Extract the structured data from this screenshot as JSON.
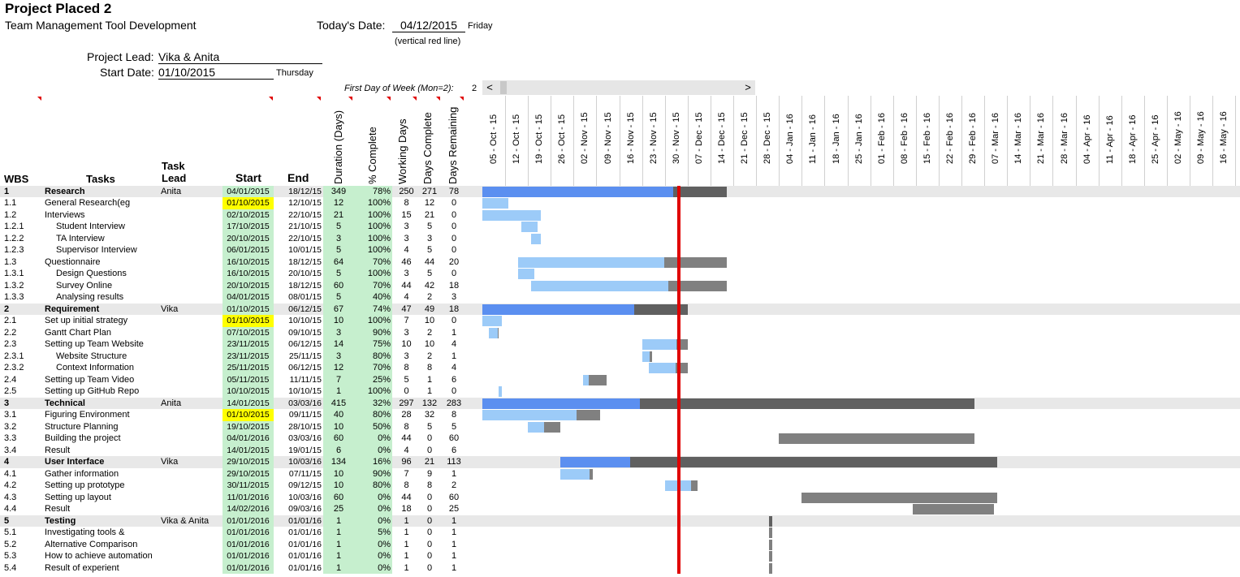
{
  "header": {
    "title": "Project Placed 2",
    "subtitle": "Team Management Tool Development",
    "today_label": "Today's Date:",
    "today_value": "04/12/2015",
    "today_day": "Friday",
    "today_note": "(vertical red line)",
    "lead_label": "Project Lead:",
    "lead_value": "Vika & Anita",
    "start_label": "Start Date:",
    "start_value": "01/10/2015",
    "start_day": "Thursday",
    "first_day_label": "First Day of Week (Mon=2):",
    "first_day_value": "2"
  },
  "columns": {
    "wbs": "WBS",
    "tasks": "Tasks",
    "lead_1": "Task",
    "lead_2": "Lead",
    "start": "Start",
    "end": "End",
    "duration": "Duration (Days)",
    "pct": "% Complete",
    "working": "Working Days",
    "done": "Days Complete",
    "remaining": "Days Remaining"
  },
  "scroll": {
    "left": "<",
    "right": ">"
  },
  "weeks": [
    "05 - Oct - 15",
    "12 - Oct - 15",
    "19 - Oct - 15",
    "26 - Oct - 15",
    "02 - Nov - 15",
    "09 - Nov - 15",
    "16 - Nov - 15",
    "23 - Nov - 15",
    "30 - Nov - 15",
    "07 - Dec - 15",
    "14 - Dec - 15",
    "21 - Dec - 15",
    "28 - Dec - 15",
    "04 - Jan - 16",
    "11 - Jan - 16",
    "18 - Jan - 16",
    "25 - Jan - 16",
    "01 - Feb - 16",
    "08 - Feb - 16",
    "15 - Feb - 16",
    "22 - Feb - 16",
    "29 - Feb - 16",
    "07 - Mar - 16",
    "14 - Mar - 16",
    "21 - Mar - 16",
    "28 - Mar - 16",
    "04 - Apr - 16",
    "11 - Apr - 16",
    "18 - Apr - 16",
    "25 - Apr - 16",
    "02 - May - 16",
    "09 - May - 16",
    "16 - May - 16"
  ],
  "colors": {
    "phase_done": "#5b8ff0",
    "phase_todo": "#606060",
    "task_done": "#9ccbf8",
    "task_todo": "#808080",
    "today": "#e00000"
  },
  "tasks": [
    {
      "wbs": "1",
      "task": "Research",
      "lead": "Anita",
      "start": "04/01/2015",
      "end": "18/12/15",
      "dur": "349",
      "pct": "78%",
      "wd": "250",
      "dc": "271",
      "dr": "78",
      "phase": true
    },
    {
      "wbs": "1.1",
      "task": "General Research(eg",
      "lead": "",
      "start": "01/10/2015",
      "end": "12/10/15",
      "dur": "12",
      "pct": "100%",
      "wd": "8",
      "dc": "12",
      "dr": "0",
      "hl": true
    },
    {
      "wbs": "1.2",
      "task": "Interviews",
      "lead": "",
      "start": "02/10/2015",
      "end": "22/10/15",
      "dur": "21",
      "pct": "100%",
      "wd": "15",
      "dc": "21",
      "dr": "0"
    },
    {
      "wbs": "1.2.1",
      "task": "Student Interview",
      "lead": "",
      "start": "17/10/2015",
      "end": "21/10/15",
      "dur": "5",
      "pct": "100%",
      "wd": "3",
      "dc": "5",
      "dr": "0",
      "sub": true
    },
    {
      "wbs": "1.2.2",
      "task": "TA Interview",
      "lead": "",
      "start": "20/10/2015",
      "end": "22/10/15",
      "dur": "3",
      "pct": "100%",
      "wd": "3",
      "dc": "3",
      "dr": "0",
      "sub": true
    },
    {
      "wbs": "1.2.3",
      "task": "Supervisor Interview",
      "lead": "",
      "start": "06/01/2015",
      "end": "10/01/15",
      "dur": "5",
      "pct": "100%",
      "wd": "4",
      "dc": "5",
      "dr": "0",
      "sub": true
    },
    {
      "wbs": "1.3",
      "task": "Questionnaire",
      "lead": "",
      "start": "16/10/2015",
      "end": "18/12/15",
      "dur": "64",
      "pct": "70%",
      "wd": "46",
      "dc": "44",
      "dr": "20"
    },
    {
      "wbs": "1.3.1",
      "task": "Design Questions",
      "lead": "",
      "start": "16/10/2015",
      "end": "20/10/15",
      "dur": "5",
      "pct": "100%",
      "wd": "3",
      "dc": "5",
      "dr": "0",
      "sub": true
    },
    {
      "wbs": "1.3.2",
      "task": "Survey Online",
      "lead": "",
      "start": "20/10/2015",
      "end": "18/12/15",
      "dur": "60",
      "pct": "70%",
      "wd": "44",
      "dc": "42",
      "dr": "18",
      "sub": true
    },
    {
      "wbs": "1.3.3",
      "task": "Analysing results",
      "lead": "",
      "start": "04/01/2015",
      "end": "08/01/15",
      "dur": "5",
      "pct": "40%",
      "wd": "4",
      "dc": "2",
      "dr": "3",
      "sub": true
    },
    {
      "wbs": "2",
      "task": "Requirement",
      "lead": "Vika",
      "start": "01/10/2015",
      "end": "06/12/15",
      "dur": "67",
      "pct": "74%",
      "wd": "47",
      "dc": "49",
      "dr": "18",
      "phase": true
    },
    {
      "wbs": "2.1",
      "task": "Set up initial strategy",
      "lead": "",
      "start": "01/10/2015",
      "end": "10/10/15",
      "dur": "10",
      "pct": "100%",
      "wd": "7",
      "dc": "10",
      "dr": "0",
      "hl": true
    },
    {
      "wbs": "2.2",
      "task": "Gantt Chart Plan",
      "lead": "",
      "start": "07/10/2015",
      "end": "09/10/15",
      "dur": "3",
      "pct": "90%",
      "wd": "3",
      "dc": "2",
      "dr": "1"
    },
    {
      "wbs": "2.3",
      "task": "Setting up Team Website",
      "lead": "",
      "start": "23/11/2015",
      "end": "06/12/15",
      "dur": "14",
      "pct": "75%",
      "wd": "10",
      "dc": "10",
      "dr": "4"
    },
    {
      "wbs": "2.3.1",
      "task": "Website Structure",
      "lead": "",
      "start": "23/11/2015",
      "end": "25/11/15",
      "dur": "3",
      "pct": "80%",
      "wd": "3",
      "dc": "2",
      "dr": "1",
      "sub": true
    },
    {
      "wbs": "2.3.2",
      "task": "Context Information",
      "lead": "",
      "start": "25/11/2015",
      "end": "06/12/15",
      "dur": "12",
      "pct": "70%",
      "wd": "8",
      "dc": "8",
      "dr": "4",
      "sub": true
    },
    {
      "wbs": "2.4",
      "task": "Setting up Team Video",
      "lead": "",
      "start": "05/11/2015",
      "end": "11/11/15",
      "dur": "7",
      "pct": "25%",
      "wd": "5",
      "dc": "1",
      "dr": "6"
    },
    {
      "wbs": "2.5",
      "task": "Setting up GitHub Repo",
      "lead": "",
      "start": "10/10/2015",
      "end": "10/10/15",
      "dur": "1",
      "pct": "100%",
      "wd": "0",
      "dc": "1",
      "dr": "0"
    },
    {
      "wbs": "3",
      "task": "Technical",
      "lead": "Anita",
      "start": "14/01/2015",
      "end": "03/03/16",
      "dur": "415",
      "pct": "32%",
      "wd": "297",
      "dc": "132",
      "dr": "283",
      "phase": true
    },
    {
      "wbs": "3.1",
      "task": "Figuring Environment",
      "lead": "",
      "start": "01/10/2015",
      "end": "09/11/15",
      "dur": "40",
      "pct": "80%",
      "wd": "28",
      "dc": "32",
      "dr": "8",
      "hl": true
    },
    {
      "wbs": "3.2",
      "task": "Structure Planning",
      "lead": "",
      "start": "19/10/2015",
      "end": "28/10/15",
      "dur": "10",
      "pct": "50%",
      "wd": "8",
      "dc": "5",
      "dr": "5"
    },
    {
      "wbs": "3.3",
      "task": "Building the project",
      "lead": "",
      "start": "04/01/2016",
      "end": "03/03/16",
      "dur": "60",
      "pct": "0%",
      "wd": "44",
      "dc": "0",
      "dr": "60"
    },
    {
      "wbs": "3.4",
      "task": "Result",
      "lead": "",
      "start": "14/01/2015",
      "end": "19/01/15",
      "dur": "6",
      "pct": "0%",
      "wd": "4",
      "dc": "0",
      "dr": "6"
    },
    {
      "wbs": "4",
      "task": "User Interface",
      "lead": "Vika",
      "start": "29/10/2015",
      "end": "10/03/16",
      "dur": "134",
      "pct": "16%",
      "wd": "96",
      "dc": "21",
      "dr": "113",
      "phase": true
    },
    {
      "wbs": "4.1",
      "task": "Gather information",
      "lead": "",
      "start": "29/10/2015",
      "end": "07/11/15",
      "dur": "10",
      "pct": "90%",
      "wd": "7",
      "dc": "9",
      "dr": "1"
    },
    {
      "wbs": "4.2",
      "task": "Setting up prototype",
      "lead": "",
      "start": "30/11/2015",
      "end": "09/12/15",
      "dur": "10",
      "pct": "80%",
      "wd": "8",
      "dc": "8",
      "dr": "2"
    },
    {
      "wbs": "4.3",
      "task": "Setting up layout",
      "lead": "",
      "start": "11/01/2016",
      "end": "10/03/16",
      "dur": "60",
      "pct": "0%",
      "wd": "44",
      "dc": "0",
      "dr": "60"
    },
    {
      "wbs": "4.4",
      "task": "Result",
      "lead": "",
      "start": "14/02/2016",
      "end": "09/03/16",
      "dur": "25",
      "pct": "0%",
      "wd": "18",
      "dc": "0",
      "dr": "25"
    },
    {
      "wbs": "5",
      "task": "Testing",
      "lead": "Vika & Anita",
      "start": "01/01/2016",
      "end": "01/01/16",
      "dur": "1",
      "pct": "0%",
      "wd": "1",
      "dc": "0",
      "dr": "1",
      "phase": true
    },
    {
      "wbs": "5.1",
      "task": "Investigating tools &",
      "lead": "",
      "start": "01/01/2016",
      "end": "01/01/16",
      "dur": "1",
      "pct": "5%",
      "wd": "1",
      "dc": "0",
      "dr": "1"
    },
    {
      "wbs": "5.2",
      "task": "Alternative Comparison",
      "lead": "",
      "start": "01/01/2016",
      "end": "01/01/16",
      "dur": "1",
      "pct": "0%",
      "wd": "1",
      "dc": "0",
      "dr": "1"
    },
    {
      "wbs": "5.3",
      "task": "How to achieve automation",
      "lead": "",
      "start": "01/01/2016",
      "end": "01/01/16",
      "dur": "1",
      "pct": "0%",
      "wd": "1",
      "dc": "0",
      "dr": "1"
    },
    {
      "wbs": "5.4",
      "task": "Result of experient",
      "lead": "",
      "start": "01/01/2016",
      "end": "01/01/16",
      "dur": "1",
      "pct": "0%",
      "wd": "1",
      "dc": "0",
      "dr": "1"
    }
  ]
}
